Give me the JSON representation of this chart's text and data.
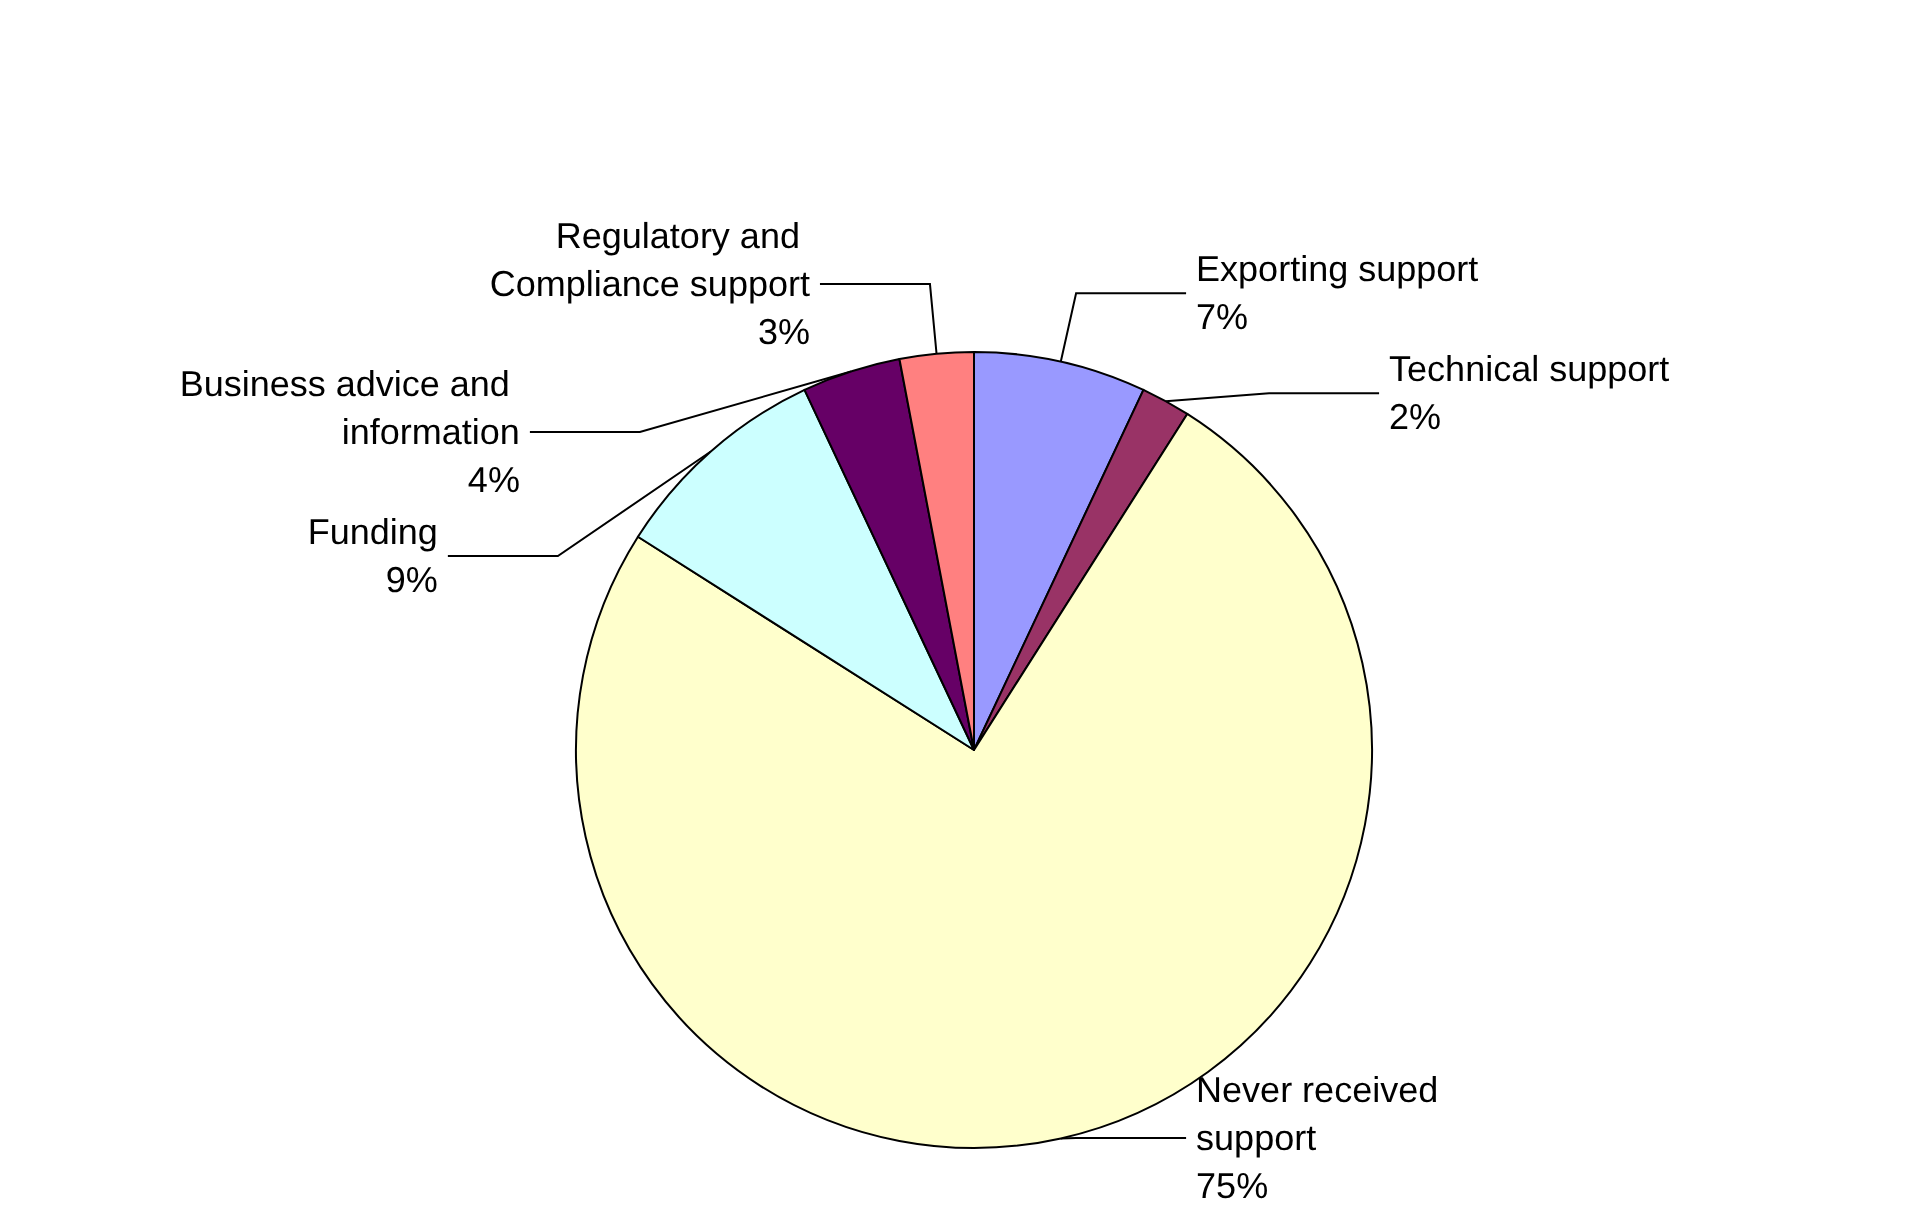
{
  "chart_data": {
    "type": "pie",
    "categories": [
      "Exporting support",
      "Technical support",
      "Never received support",
      "Funding",
      "Business advice and information",
      "Regulatory and Compliance support"
    ],
    "values": [
      7,
      2,
      75,
      9,
      4,
      3
    ],
    "colors": [
      "#9999ff",
      "#993366",
      "#ffffcc",
      "#ccffff",
      "#660066",
      "#ff8080"
    ],
    "value_labels": [
      "7%",
      "2%",
      "75%",
      "9%",
      "4%",
      "3%"
    ],
    "legend": false
  }
}
